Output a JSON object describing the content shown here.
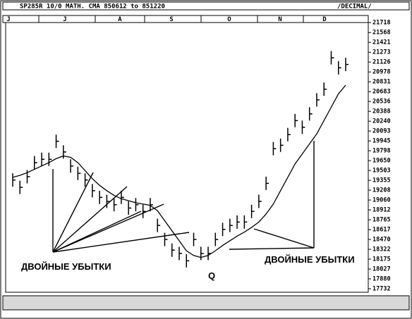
{
  "chart_data": {
    "type": "ohlc",
    "title": "SP285R 10/0 MATH. CMA  850612 to 851220",
    "scale_label": "/DECIMAL/",
    "months": [
      "J",
      "J",
      "A",
      "S",
      "O",
      "N",
      "D"
    ],
    "annotations": [
      "ДВОЙНЫЕ УБЫТКИ",
      "ДВОЙНЫЕ УБЫТКИ",
      "Q"
    ],
    "ylim": [
      17732,
      21718
    ],
    "yticks": [
      21718,
      21568,
      21421,
      21273,
      21126,
      20978,
      20831,
      20683,
      20536,
      20388,
      20240,
      20093,
      19945,
      19798,
      19650,
      19503,
      19355,
      19208,
      19060,
      18912,
      18765,
      18617,
      18470,
      18322,
      18175,
      18027,
      17880,
      17732
    ],
    "color": "#000000",
    "high": [
      19460,
      19350,
      19510,
      19720,
      19770,
      19770,
      20040,
      19880,
      19670,
      19560,
      19460,
      19300,
      19200,
      19140,
      19090,
      19200,
      19040,
      19090,
      18990,
      19090,
      18780,
      18570,
      18410,
      18360,
      18250,
      18570,
      18360,
      18360,
      18570,
      18720,
      18780,
      18830,
      18830,
      18990,
      19140,
      19410,
      19930,
      19980,
      20140,
      20350,
      20250,
      20450,
      20660,
      20820,
      21290,
      21140,
      21190
    ],
    "low": [
      19260,
      19150,
      19310,
      19520,
      19570,
      19570,
      19840,
      19680,
      19470,
      19360,
      19260,
      19100,
      19000,
      18940,
      18890,
      19000,
      18840,
      18890,
      18790,
      18890,
      18580,
      18370,
      18210,
      18160,
      18050,
      18370,
      18160,
      18160,
      18370,
      18520,
      18580,
      18630,
      18630,
      18790,
      18940,
      19210,
      19730,
      19780,
      19940,
      20150,
      20050,
      20250,
      20460,
      20620,
      21090,
      20940,
      20990
    ],
    "close": [
      19360,
      19250,
      19410,
      19620,
      19670,
      19670,
      19940,
      19780,
      19570,
      19460,
      19360,
      19200,
      19100,
      19040,
      18990,
      19100,
      18940,
      18990,
      18890,
      18990,
      18680,
      18470,
      18310,
      18260,
      18150,
      18470,
      18260,
      18260,
      18470,
      18620,
      18680,
      18730,
      18730,
      18890,
      19040,
      19310,
      19830,
      19880,
      20040,
      20250,
      20150,
      20350,
      20560,
      20720,
      21190,
      21040,
      21090
    ],
    "ma": [
      19400,
      19430,
      19470,
      19520,
      19570,
      19620,
      19680,
      19720,
      19700,
      19620,
      19500,
      19380,
      19280,
      19200,
      19130,
      19080,
      19050,
      19020,
      19000,
      18980,
      18900,
      18750,
      18600,
      18450,
      18300,
      18230,
      18200,
      18230,
      18300,
      18380,
      18450,
      18520,
      18580,
      18650,
      18730,
      18850,
      19000,
      19200,
      19400,
      19600,
      19750,
      19900,
      20050,
      20250,
      20450,
      20650,
      20780
    ]
  }
}
